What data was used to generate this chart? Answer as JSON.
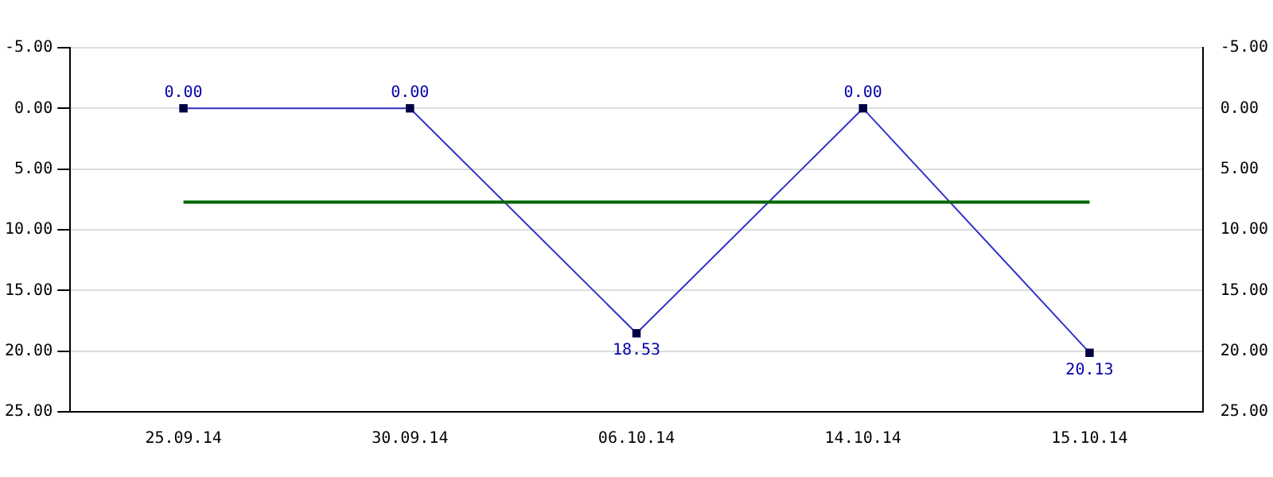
{
  "chart_data": {
    "type": "line",
    "categories": [
      "25.09.14",
      "30.09.14",
      "06.10.14",
      "14.10.14",
      "15.10.14"
    ],
    "series": [
      {
        "color": "#3333cc",
        "values": [
          0,
          0,
          18.53,
          0,
          20.13
        ],
        "value_labels": [
          "0.00",
          "0.00",
          "18.53",
          "0.00",
          "20.13"
        ]
      }
    ],
    "ylim": [
      25,
      -5
    ],
    "yticks": [
      {
        "value": -5,
        "label": "-5.00"
      },
      {
        "value": 0,
        "label": "0.00"
      },
      {
        "value": 5,
        "label": "5.00"
      },
      {
        "value": 10,
        "label": "10.00"
      },
      {
        "value": 15,
        "label": "15.00"
      },
      {
        "value": 20,
        "label": "20.00"
      },
      {
        "value": 25,
        "label": "25.00"
      }
    ],
    "y2lim": [
      25,
      -5
    ],
    "y2ticks": [
      {
        "value": -5,
        "label": "-5.00"
      },
      {
        "value": 0,
        "label": "0.00"
      },
      {
        "value": 5,
        "label": "5.00"
      },
      {
        "value": 10,
        "label": "10.00"
      },
      {
        "value": 15,
        "label": "15.00"
      },
      {
        "value": 20,
        "label": "20.00"
      },
      {
        "value": 25,
        "label": "25.00"
      }
    ],
    "ref_lines": [
      {
        "axis": "y",
        "value": 7.73,
        "color": "#006600"
      }
    ],
    "grid": "y",
    "legend": false,
    "marker": "square",
    "line_style": "solid"
  }
}
